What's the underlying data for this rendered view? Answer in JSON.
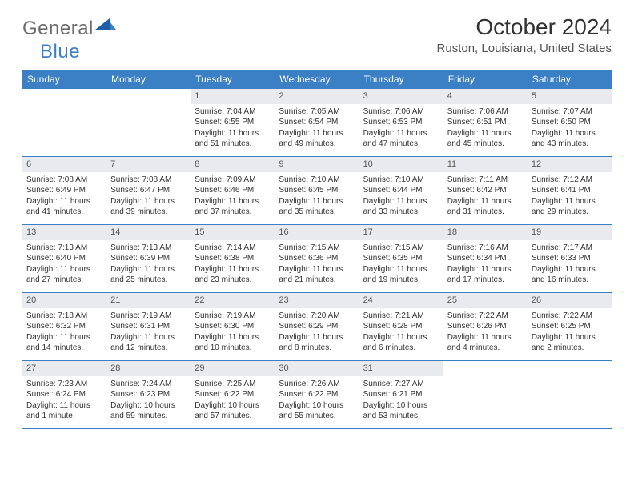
{
  "brand": {
    "part1": "General",
    "part2": "Blue"
  },
  "title": "October 2024",
  "location": "Ruston, Louisiana, United States",
  "colors": {
    "header_bg": "#3b7fc4",
    "daynum_bg": "#e8eaed",
    "row_border": "#3b7fc4",
    "text": "#333333",
    "brand_gray": "#6b6b6b",
    "brand_blue": "#3b7fc4"
  },
  "day_names": [
    "Sunday",
    "Monday",
    "Tuesday",
    "Wednesday",
    "Thursday",
    "Friday",
    "Saturday"
  ],
  "weeks": [
    [
      null,
      null,
      {
        "d": "1",
        "sr": "Sunrise: 7:04 AM",
        "ss": "Sunset: 6:55 PM",
        "dl": "Daylight: 11 hours and 51 minutes."
      },
      {
        "d": "2",
        "sr": "Sunrise: 7:05 AM",
        "ss": "Sunset: 6:54 PM",
        "dl": "Daylight: 11 hours and 49 minutes."
      },
      {
        "d": "3",
        "sr": "Sunrise: 7:06 AM",
        "ss": "Sunset: 6:53 PM",
        "dl": "Daylight: 11 hours and 47 minutes."
      },
      {
        "d": "4",
        "sr": "Sunrise: 7:06 AM",
        "ss": "Sunset: 6:51 PM",
        "dl": "Daylight: 11 hours and 45 minutes."
      },
      {
        "d": "5",
        "sr": "Sunrise: 7:07 AM",
        "ss": "Sunset: 6:50 PM",
        "dl": "Daylight: 11 hours and 43 minutes."
      }
    ],
    [
      {
        "d": "6",
        "sr": "Sunrise: 7:08 AM",
        "ss": "Sunset: 6:49 PM",
        "dl": "Daylight: 11 hours and 41 minutes."
      },
      {
        "d": "7",
        "sr": "Sunrise: 7:08 AM",
        "ss": "Sunset: 6:47 PM",
        "dl": "Daylight: 11 hours and 39 minutes."
      },
      {
        "d": "8",
        "sr": "Sunrise: 7:09 AM",
        "ss": "Sunset: 6:46 PM",
        "dl": "Daylight: 11 hours and 37 minutes."
      },
      {
        "d": "9",
        "sr": "Sunrise: 7:10 AM",
        "ss": "Sunset: 6:45 PM",
        "dl": "Daylight: 11 hours and 35 minutes."
      },
      {
        "d": "10",
        "sr": "Sunrise: 7:10 AM",
        "ss": "Sunset: 6:44 PM",
        "dl": "Daylight: 11 hours and 33 minutes."
      },
      {
        "d": "11",
        "sr": "Sunrise: 7:11 AM",
        "ss": "Sunset: 6:42 PM",
        "dl": "Daylight: 11 hours and 31 minutes."
      },
      {
        "d": "12",
        "sr": "Sunrise: 7:12 AM",
        "ss": "Sunset: 6:41 PM",
        "dl": "Daylight: 11 hours and 29 minutes."
      }
    ],
    [
      {
        "d": "13",
        "sr": "Sunrise: 7:13 AM",
        "ss": "Sunset: 6:40 PM",
        "dl": "Daylight: 11 hours and 27 minutes."
      },
      {
        "d": "14",
        "sr": "Sunrise: 7:13 AM",
        "ss": "Sunset: 6:39 PM",
        "dl": "Daylight: 11 hours and 25 minutes."
      },
      {
        "d": "15",
        "sr": "Sunrise: 7:14 AM",
        "ss": "Sunset: 6:38 PM",
        "dl": "Daylight: 11 hours and 23 minutes."
      },
      {
        "d": "16",
        "sr": "Sunrise: 7:15 AM",
        "ss": "Sunset: 6:36 PM",
        "dl": "Daylight: 11 hours and 21 minutes."
      },
      {
        "d": "17",
        "sr": "Sunrise: 7:15 AM",
        "ss": "Sunset: 6:35 PM",
        "dl": "Daylight: 11 hours and 19 minutes."
      },
      {
        "d": "18",
        "sr": "Sunrise: 7:16 AM",
        "ss": "Sunset: 6:34 PM",
        "dl": "Daylight: 11 hours and 17 minutes."
      },
      {
        "d": "19",
        "sr": "Sunrise: 7:17 AM",
        "ss": "Sunset: 6:33 PM",
        "dl": "Daylight: 11 hours and 16 minutes."
      }
    ],
    [
      {
        "d": "20",
        "sr": "Sunrise: 7:18 AM",
        "ss": "Sunset: 6:32 PM",
        "dl": "Daylight: 11 hours and 14 minutes."
      },
      {
        "d": "21",
        "sr": "Sunrise: 7:19 AM",
        "ss": "Sunset: 6:31 PM",
        "dl": "Daylight: 11 hours and 12 minutes."
      },
      {
        "d": "22",
        "sr": "Sunrise: 7:19 AM",
        "ss": "Sunset: 6:30 PM",
        "dl": "Daylight: 11 hours and 10 minutes."
      },
      {
        "d": "23",
        "sr": "Sunrise: 7:20 AM",
        "ss": "Sunset: 6:29 PM",
        "dl": "Daylight: 11 hours and 8 minutes."
      },
      {
        "d": "24",
        "sr": "Sunrise: 7:21 AM",
        "ss": "Sunset: 6:28 PM",
        "dl": "Daylight: 11 hours and 6 minutes."
      },
      {
        "d": "25",
        "sr": "Sunrise: 7:22 AM",
        "ss": "Sunset: 6:26 PM",
        "dl": "Daylight: 11 hours and 4 minutes."
      },
      {
        "d": "26",
        "sr": "Sunrise: 7:22 AM",
        "ss": "Sunset: 6:25 PM",
        "dl": "Daylight: 11 hours and 2 minutes."
      }
    ],
    [
      {
        "d": "27",
        "sr": "Sunrise: 7:23 AM",
        "ss": "Sunset: 6:24 PM",
        "dl": "Daylight: 11 hours and 1 minute."
      },
      {
        "d": "28",
        "sr": "Sunrise: 7:24 AM",
        "ss": "Sunset: 6:23 PM",
        "dl": "Daylight: 10 hours and 59 minutes."
      },
      {
        "d": "29",
        "sr": "Sunrise: 7:25 AM",
        "ss": "Sunset: 6:22 PM",
        "dl": "Daylight: 10 hours and 57 minutes."
      },
      {
        "d": "30",
        "sr": "Sunrise: 7:26 AM",
        "ss": "Sunset: 6:22 PM",
        "dl": "Daylight: 10 hours and 55 minutes."
      },
      {
        "d": "31",
        "sr": "Sunrise: 7:27 AM",
        "ss": "Sunset: 6:21 PM",
        "dl": "Daylight: 10 hours and 53 minutes."
      },
      null,
      null
    ]
  ]
}
